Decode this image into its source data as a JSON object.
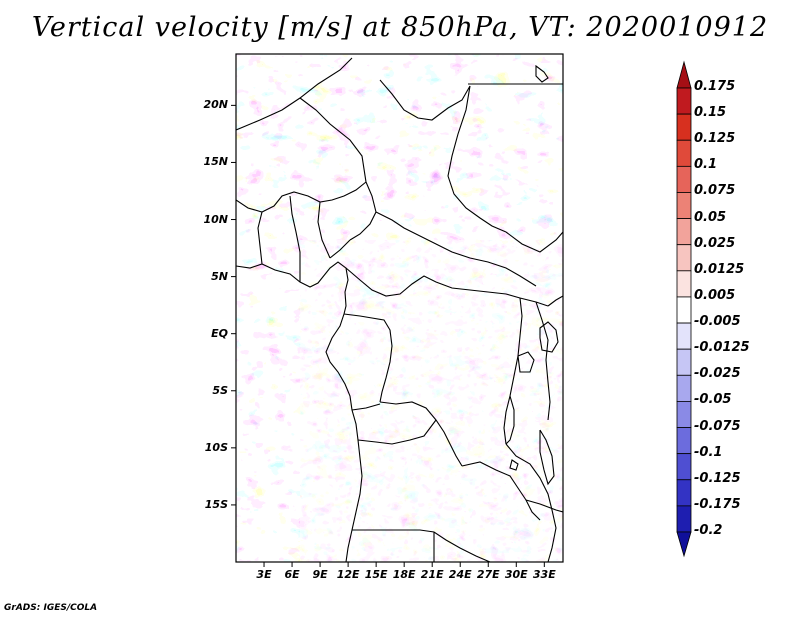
{
  "title": "Vertical velocity [m/s] at 850hPa, VT: 2020010912",
  "map": {
    "lat_labels": [
      "20N",
      "15N",
      "10N",
      "5N",
      "EQ",
      "5S",
      "10S",
      "15S"
    ],
    "lon_labels": [
      "3E",
      "6E",
      "9E",
      "12E",
      "15E",
      "18E",
      "21E",
      "24E",
      "27E",
      "30E",
      "33E"
    ],
    "lat_range": [
      -20,
      24.5
    ],
    "lon_range": [
      0,
      35
    ]
  },
  "colorbar": {
    "labels": [
      "0.175",
      "0.15",
      "0.125",
      "0.1",
      "0.075",
      "0.05",
      "0.025",
      "0.0125",
      "0.005",
      "-0.005",
      "-0.0125",
      "-0.025",
      "-0.05",
      "-0.075",
      "-0.1",
      "-0.125",
      "-0.175",
      "-0.2"
    ],
    "colors": [
      "#a50f15",
      "#c01a1f",
      "#d7301f",
      "#e04a3a",
      "#e6645a",
      "#ec8276",
      "#f2a39b",
      "#f7c5c0",
      "#fbe3e0",
      "#ffffff",
      "#e3e3fb",
      "#c6c6f5",
      "#a8a8ee",
      "#8a8ae6",
      "#6c6cdd",
      "#4f4fd2",
      "#3333c4",
      "#1e1eb0",
      "#10109a"
    ]
  },
  "credit": "GrADS: IGES/COLA"
}
